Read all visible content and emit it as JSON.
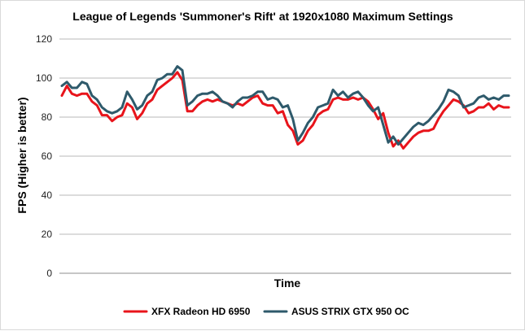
{
  "chart_data": {
    "type": "line",
    "title": "League of Legends 'Summoner's Rift' at 1920x1080 Maximum Settings",
    "xlabel": "Time",
    "ylabel": "FPS (Higher is better)",
    "ylim": [
      0,
      120
    ],
    "yticks": [
      "0",
      "20",
      "40",
      "60",
      "80",
      "100",
      "120"
    ],
    "grid": true,
    "legend_position": "bottom",
    "series": [
      {
        "name": "XFX Radeon HD 6950",
        "color": "#e8141b",
        "values": [
          91,
          96,
          92,
          91,
          92,
          92,
          88,
          86,
          81,
          81,
          78,
          80,
          81,
          87,
          85,
          79,
          82,
          87,
          89,
          94,
          96,
          98,
          100,
          103,
          99,
          83,
          83,
          86,
          88,
          89,
          88,
          89,
          88,
          87,
          86,
          87,
          86,
          88,
          90,
          91,
          87,
          86,
          86,
          82,
          83,
          76,
          73,
          66,
          68,
          73,
          76,
          81,
          83,
          84,
          89,
          90,
          89,
          89,
          90,
          89,
          90,
          88,
          84,
          79,
          82,
          72,
          65,
          68,
          64,
          67,
          70,
          72,
          73,
          73,
          74,
          79,
          83,
          86,
          89,
          88,
          86,
          82,
          83,
          85,
          85,
          87,
          84,
          86,
          85,
          85
        ]
      },
      {
        "name": "ASUS STRIX GTX 950 OC",
        "color": "#2e5a6b",
        "values": [
          96,
          98,
          95,
          95,
          98,
          97,
          91,
          89,
          85,
          83,
          82,
          83,
          85,
          93,
          89,
          84,
          86,
          91,
          93,
          99,
          100,
          102,
          102,
          106,
          104,
          86,
          88,
          91,
          92,
          92,
          93,
          91,
          88,
          87,
          85,
          88,
          90,
          90,
          91,
          93,
          93,
          89,
          90,
          89,
          85,
          86,
          79,
          68,
          72,
          77,
          80,
          85,
          86,
          87,
          94,
          91,
          93,
          90,
          92,
          93,
          90,
          86,
          83,
          85,
          76,
          67,
          70,
          66,
          69,
          72,
          75,
          77,
          76,
          78,
          81,
          84,
          88,
          94,
          93,
          91,
          85,
          86,
          87,
          90,
          91,
          89,
          90,
          89,
          91,
          91
        ]
      }
    ]
  }
}
